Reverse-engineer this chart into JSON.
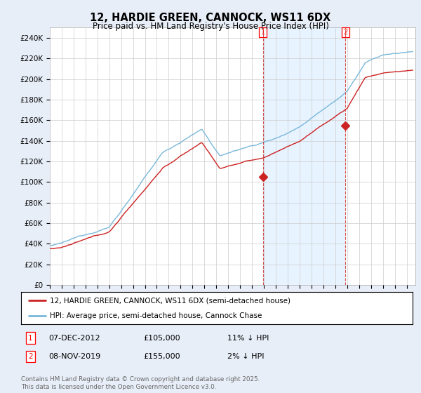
{
  "title": "12, HARDIE GREEN, CANNOCK, WS11 6DX",
  "subtitle": "Price paid vs. HM Land Registry's House Price Index (HPI)",
  "ylabel_ticks": [
    "£0",
    "£20K",
    "£40K",
    "£60K",
    "£80K",
    "£100K",
    "£120K",
    "£140K",
    "£160K",
    "£180K",
    "£200K",
    "£220K",
    "£240K"
  ],
  "ytick_values": [
    0,
    20000,
    40000,
    60000,
    80000,
    100000,
    120000,
    140000,
    160000,
    180000,
    200000,
    220000,
    240000
  ],
  "ylim": [
    0,
    250000
  ],
  "xlim_start": 1995.0,
  "xlim_end": 2025.7,
  "hpi_color": "#7ab8d9",
  "price_color": "#cc2222",
  "marker1_date": 2012.92,
  "marker1_price": 105000,
  "marker1_label": "1",
  "marker2_date": 2019.85,
  "marker2_price": 155000,
  "marker2_label": "2",
  "legend_line1": "12, HARDIE GREEN, CANNOCK, WS11 6DX (semi-detached house)",
  "legend_line2": "HPI: Average price, semi-detached house, Cannock Chase",
  "row1_num": "1",
  "row1_date": "07-DEC-2012",
  "row1_price": "£105,000",
  "row1_hpi": "11% ↓ HPI",
  "row2_num": "2",
  "row2_date": "08-NOV-2019",
  "row2_price": "£155,000",
  "row2_hpi": "2% ↓ HPI",
  "footer": "Contains HM Land Registry data © Crown copyright and database right 2025.\nThis data is licensed under the Open Government Licence v3.0.",
  "bg_color": "#e8eef8",
  "plot_bg_color": "#ffffff",
  "grid_color": "#cccccc",
  "shade_color": "#ddeeff"
}
